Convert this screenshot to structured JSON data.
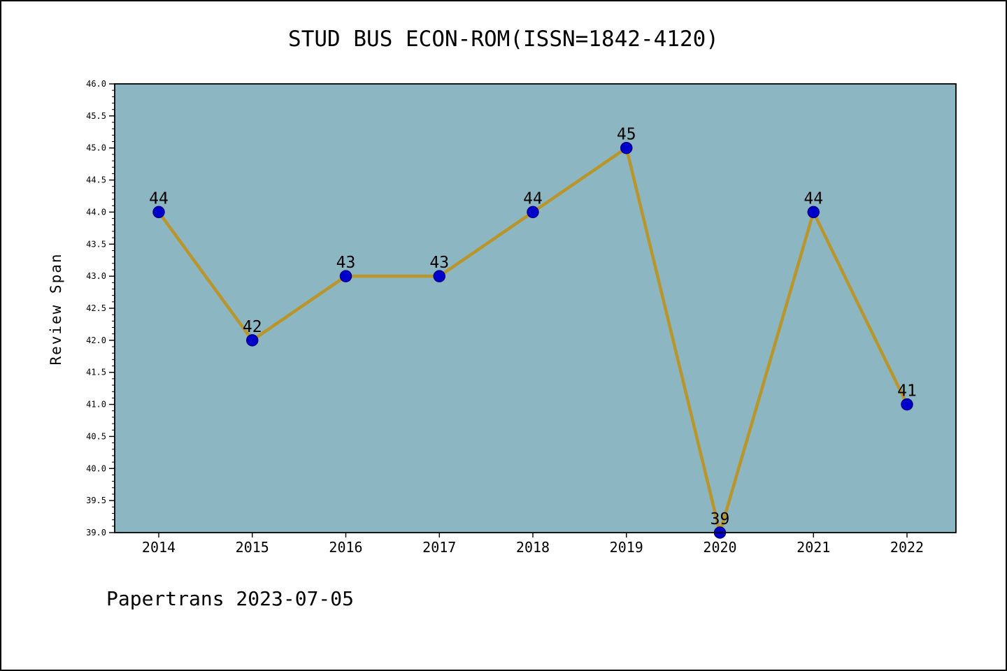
{
  "chart_data": {
    "type": "line",
    "title": "STUD BUS ECON-ROM(ISSN=1842-4120)",
    "ylabel": "Review Span",
    "xlabel": "",
    "categories": [
      "2014",
      "2015",
      "2016",
      "2017",
      "2018",
      "2019",
      "2020",
      "2021",
      "2022"
    ],
    "values": [
      44,
      42,
      43,
      43,
      44,
      45,
      39,
      44,
      41
    ],
    "ylim": [
      39.0,
      46.0
    ],
    "ytick_step": 0.5,
    "yminor_step": 0.1,
    "ytick_decimals": 1,
    "grid": false,
    "legend": "none",
    "show_point_labels": true,
    "colors": {
      "plot_background": "#8db6c3",
      "line": "#b8962c",
      "marker_fill": "#0000cd",
      "marker_edge": "#00008b",
      "axis": "#000000",
      "text": "#000000"
    }
  },
  "footer": {
    "text": "Papertrans 2023-07-05"
  }
}
